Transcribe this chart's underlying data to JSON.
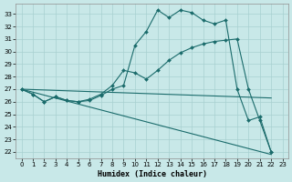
{
  "xlabel": "Humidex (Indice chaleur)",
  "xlim": [
    -0.5,
    23.5
  ],
  "ylim": [
    21.5,
    33.8
  ],
  "yticks": [
    22,
    23,
    24,
    25,
    26,
    27,
    28,
    29,
    30,
    31,
    32,
    33
  ],
  "xticks": [
    0,
    1,
    2,
    3,
    4,
    5,
    6,
    7,
    8,
    9,
    10,
    11,
    12,
    13,
    14,
    15,
    16,
    17,
    18,
    19,
    20,
    21,
    22,
    23
  ],
  "bg_color": "#c8e8e8",
  "grid_color": "#a8d0d0",
  "line_color": "#1a6b6b",
  "line1": {
    "x": [
      0,
      1,
      2,
      3,
      4,
      5,
      6,
      7,
      8,
      9,
      10,
      11,
      12,
      13,
      14,
      15,
      16,
      17,
      18,
      19,
      20,
      21,
      22
    ],
    "y": [
      27.0,
      26.6,
      26.0,
      26.4,
      26.1,
      26.0,
      26.1,
      26.5,
      27.0,
      27.3,
      30.5,
      31.6,
      33.3,
      32.7,
      33.3,
      33.1,
      32.5,
      32.2,
      32.5,
      27.0,
      24.5,
      24.8,
      22.0
    ]
  },
  "line2": {
    "x": [
      0,
      1,
      2,
      3,
      4,
      5,
      6,
      7,
      8,
      9,
      10,
      11,
      12,
      13,
      14,
      15,
      16,
      17,
      18,
      19,
      20,
      21,
      22
    ],
    "y": [
      27.0,
      26.6,
      26.0,
      26.4,
      26.1,
      26.0,
      26.2,
      26.6,
      27.3,
      28.5,
      28.3,
      27.8,
      28.5,
      29.3,
      29.9,
      30.3,
      30.6,
      30.8,
      30.9,
      31.0,
      27.0,
      24.5,
      22.0
    ]
  },
  "line3": {
    "x": [
      0,
      22
    ],
    "y": [
      27.0,
      21.8
    ]
  },
  "line4": {
    "x": [
      0,
      22
    ],
    "y": [
      27.0,
      26.3
    ]
  }
}
